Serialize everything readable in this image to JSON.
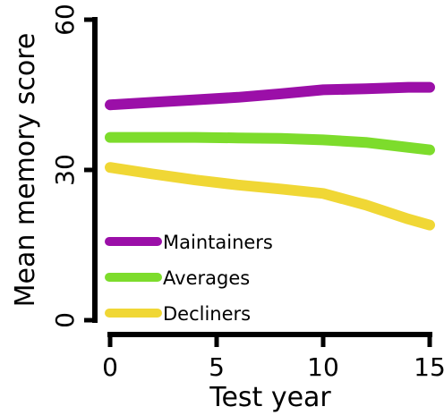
{
  "chart_data": {
    "type": "line",
    "xlabel": "Test year",
    "ylabel": "Mean memory score",
    "xlim": [
      0,
      15
    ],
    "ylim": [
      0,
      60
    ],
    "x_ticks": [
      0,
      5,
      10,
      15
    ],
    "y_ticks": [
      0,
      30,
      60
    ],
    "x_tick_labels": [
      "0",
      "5",
      "10",
      "15"
    ],
    "y_tick_labels": [
      "0",
      "30",
      "60"
    ],
    "grid": false,
    "legend_position": "bottom-left",
    "series": [
      {
        "name": "Maintainers",
        "color": "#9b0fa8",
        "x": [
          0,
          2,
          4,
          6,
          8,
          10,
          12,
          14,
          15
        ],
        "y": [
          43,
          43.5,
          44,
          44.5,
          45.2,
          46,
          46.2,
          46.5,
          46.5
        ]
      },
      {
        "name": "Averages",
        "color": "#7ddc2c",
        "x": [
          0,
          2,
          4,
          6,
          8,
          10,
          12,
          14,
          15
        ],
        "y": [
          36.5,
          36.5,
          36.5,
          36.4,
          36.3,
          36.0,
          35.5,
          34.5,
          34.0
        ]
      },
      {
        "name": "Decliners",
        "color": "#f0d735",
        "x": [
          0,
          2,
          4,
          6,
          8,
          10,
          12,
          14,
          15
        ],
        "y": [
          30.5,
          29.2,
          28,
          27,
          26.2,
          25.3,
          23.0,
          20.2,
          19.0
        ]
      }
    ]
  }
}
